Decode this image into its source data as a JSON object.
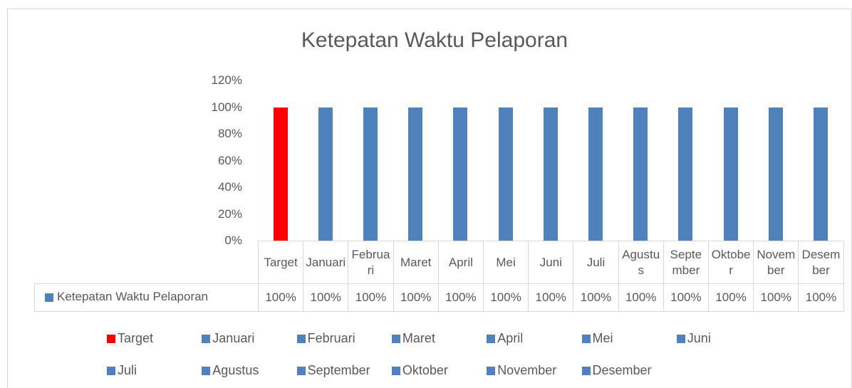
{
  "chart_data": {
    "type": "bar",
    "title": "Ketepatan Waktu Pelaporan",
    "categories": [
      "Target",
      "Januari",
      "Februari",
      "Maret",
      "April",
      "Mei",
      "Juni",
      "Juli",
      "Agustus",
      "September",
      "Oktober",
      "November",
      "Desember"
    ],
    "series": [
      {
        "name": "Ketepatan Waktu Pelaporan",
        "color": "#4f81bd",
        "values": [
          100,
          100,
          100,
          100,
          100,
          100,
          100,
          100,
          100,
          100,
          100,
          100,
          100
        ],
        "value_labels": [
          "100%",
          "100%",
          "100%",
          "100%",
          "100%",
          "100%",
          "100%",
          "100%",
          "100%",
          "100%",
          "100%",
          "100%",
          "100%"
        ],
        "point_colors": [
          "#ff0000",
          "#4f81bd",
          "#4f81bd",
          "#4f81bd",
          "#4f81bd",
          "#4f81bd",
          "#4f81bd",
          "#4f81bd",
          "#4f81bd",
          "#4f81bd",
          "#4f81bd",
          "#4f81bd",
          "#4f81bd"
        ]
      }
    ],
    "ylim": [
      0,
      120
    ],
    "yticks": [
      {
        "value": 0,
        "label": "0%"
      },
      {
        "value": 20,
        "label": "20%"
      },
      {
        "value": 40,
        "label": "40%"
      },
      {
        "value": 60,
        "label": "60%"
      },
      {
        "value": 80,
        "label": "80%"
      },
      {
        "value": 100,
        "label": "100%"
      },
      {
        "value": 120,
        "label": "120%"
      }
    ],
    "grid": false,
    "legend": "bottom"
  }
}
